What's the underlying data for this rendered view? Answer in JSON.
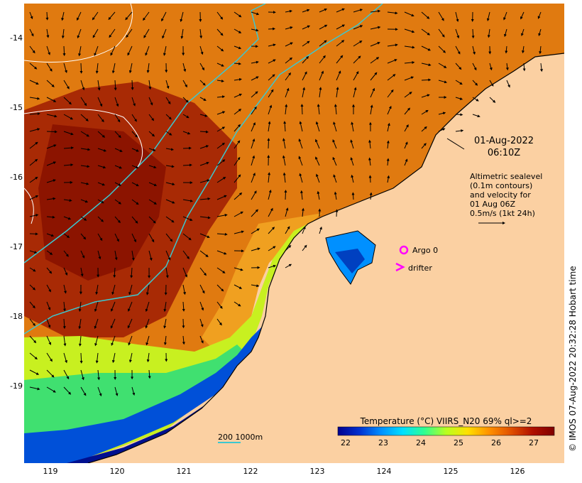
{
  "map": {
    "y_ticks": [
      "-14",
      "-15",
      "-16",
      "-17",
      "-18",
      "-19"
    ],
    "x_ticks": [
      "119",
      "120",
      "121",
      "122",
      "123",
      "124",
      "125",
      "126"
    ],
    "date": "01-Aug-2022",
    "time": "06:10Z",
    "legend_lines": [
      "Altimetric sealevel",
      "(0.1m contours)",
      "and velocity for",
      "01 Aug 06Z",
      "0.5m/s (1kt 24h)"
    ],
    "argo_label": "Argo 0",
    "drifter_label": "drifter",
    "scale_label": "200  1000m",
    "credit": "© IMOS 07-Aug-2022 20:32:28 Hobart time",
    "colorbar": {
      "title": "Temperature (°C) VIIRS_N20 69% ql>=2",
      "ticks": [
        "22",
        "23",
        "24",
        "25",
        "26",
        "27"
      ],
      "colors": [
        "#00008f",
        "#0030d0",
        "#0090ff",
        "#00e0ff",
        "#30ff90",
        "#b8ff20",
        "#ffe000",
        "#ff9000",
        "#e05000",
        "#b01000",
        "#800000"
      ]
    },
    "colors": {
      "land": "#fbd0a2",
      "argo_marker": "#ff00ff",
      "drifter_marker": "#ff00ff",
      "isobath": "#3cc8d0"
    }
  }
}
